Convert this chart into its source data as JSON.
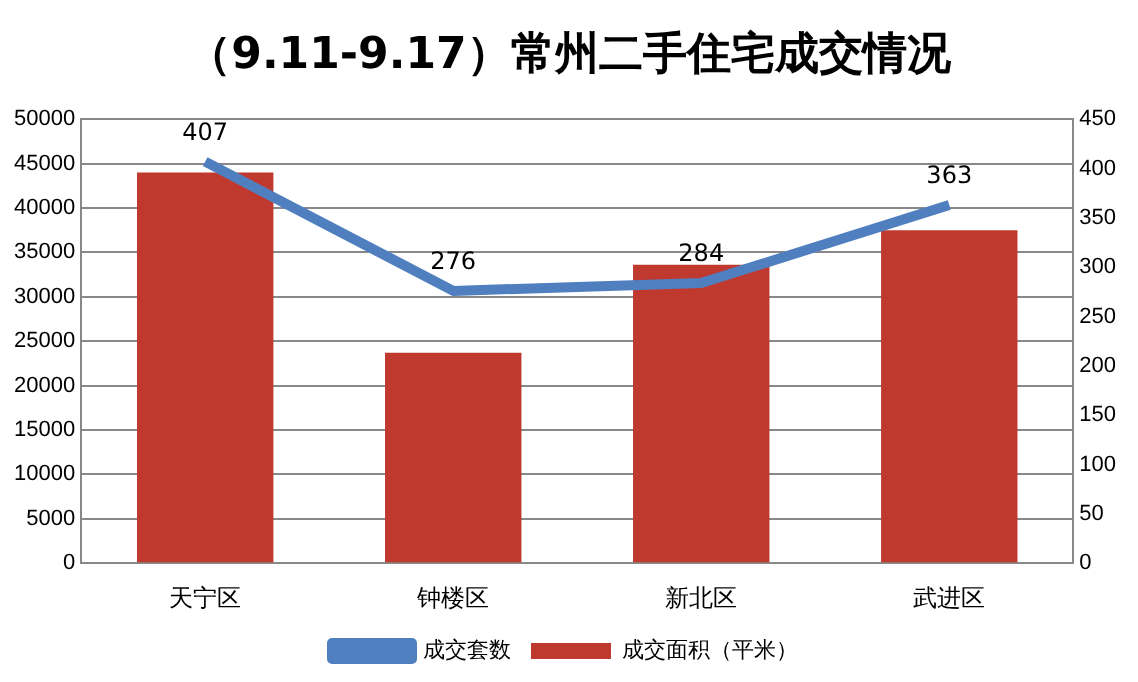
{
  "chart_data": {
    "type": "bar",
    "title": "（9.11-9.17）常州二手住宅成交情况",
    "categories": [
      "天宁区",
      "钟楼区",
      "新北区",
      "武进区"
    ],
    "series": [
      {
        "name": "成交面积（平米）",
        "color": "#c0392f",
        "values": [
          44000,
          23700,
          33600,
          37500
        ]
      },
      {
        "name": "成交套数",
        "type": "line",
        "axis": "y2",
        "color": "#4f7fbf",
        "values": [
          407,
          276,
          284,
          363
        ],
        "data_labels": true
      }
    ],
    "ylim": [
      0,
      50000
    ],
    "yticks": [
      0,
      5000,
      10000,
      15000,
      20000,
      25000,
      30000,
      35000,
      40000,
      45000,
      50000
    ],
    "y2lim": [
      0,
      450
    ],
    "y2ticks": [
      0,
      50,
      100,
      150,
      200,
      250,
      300,
      350,
      400,
      450
    ],
    "grid": "y",
    "legend": "bottom"
  }
}
